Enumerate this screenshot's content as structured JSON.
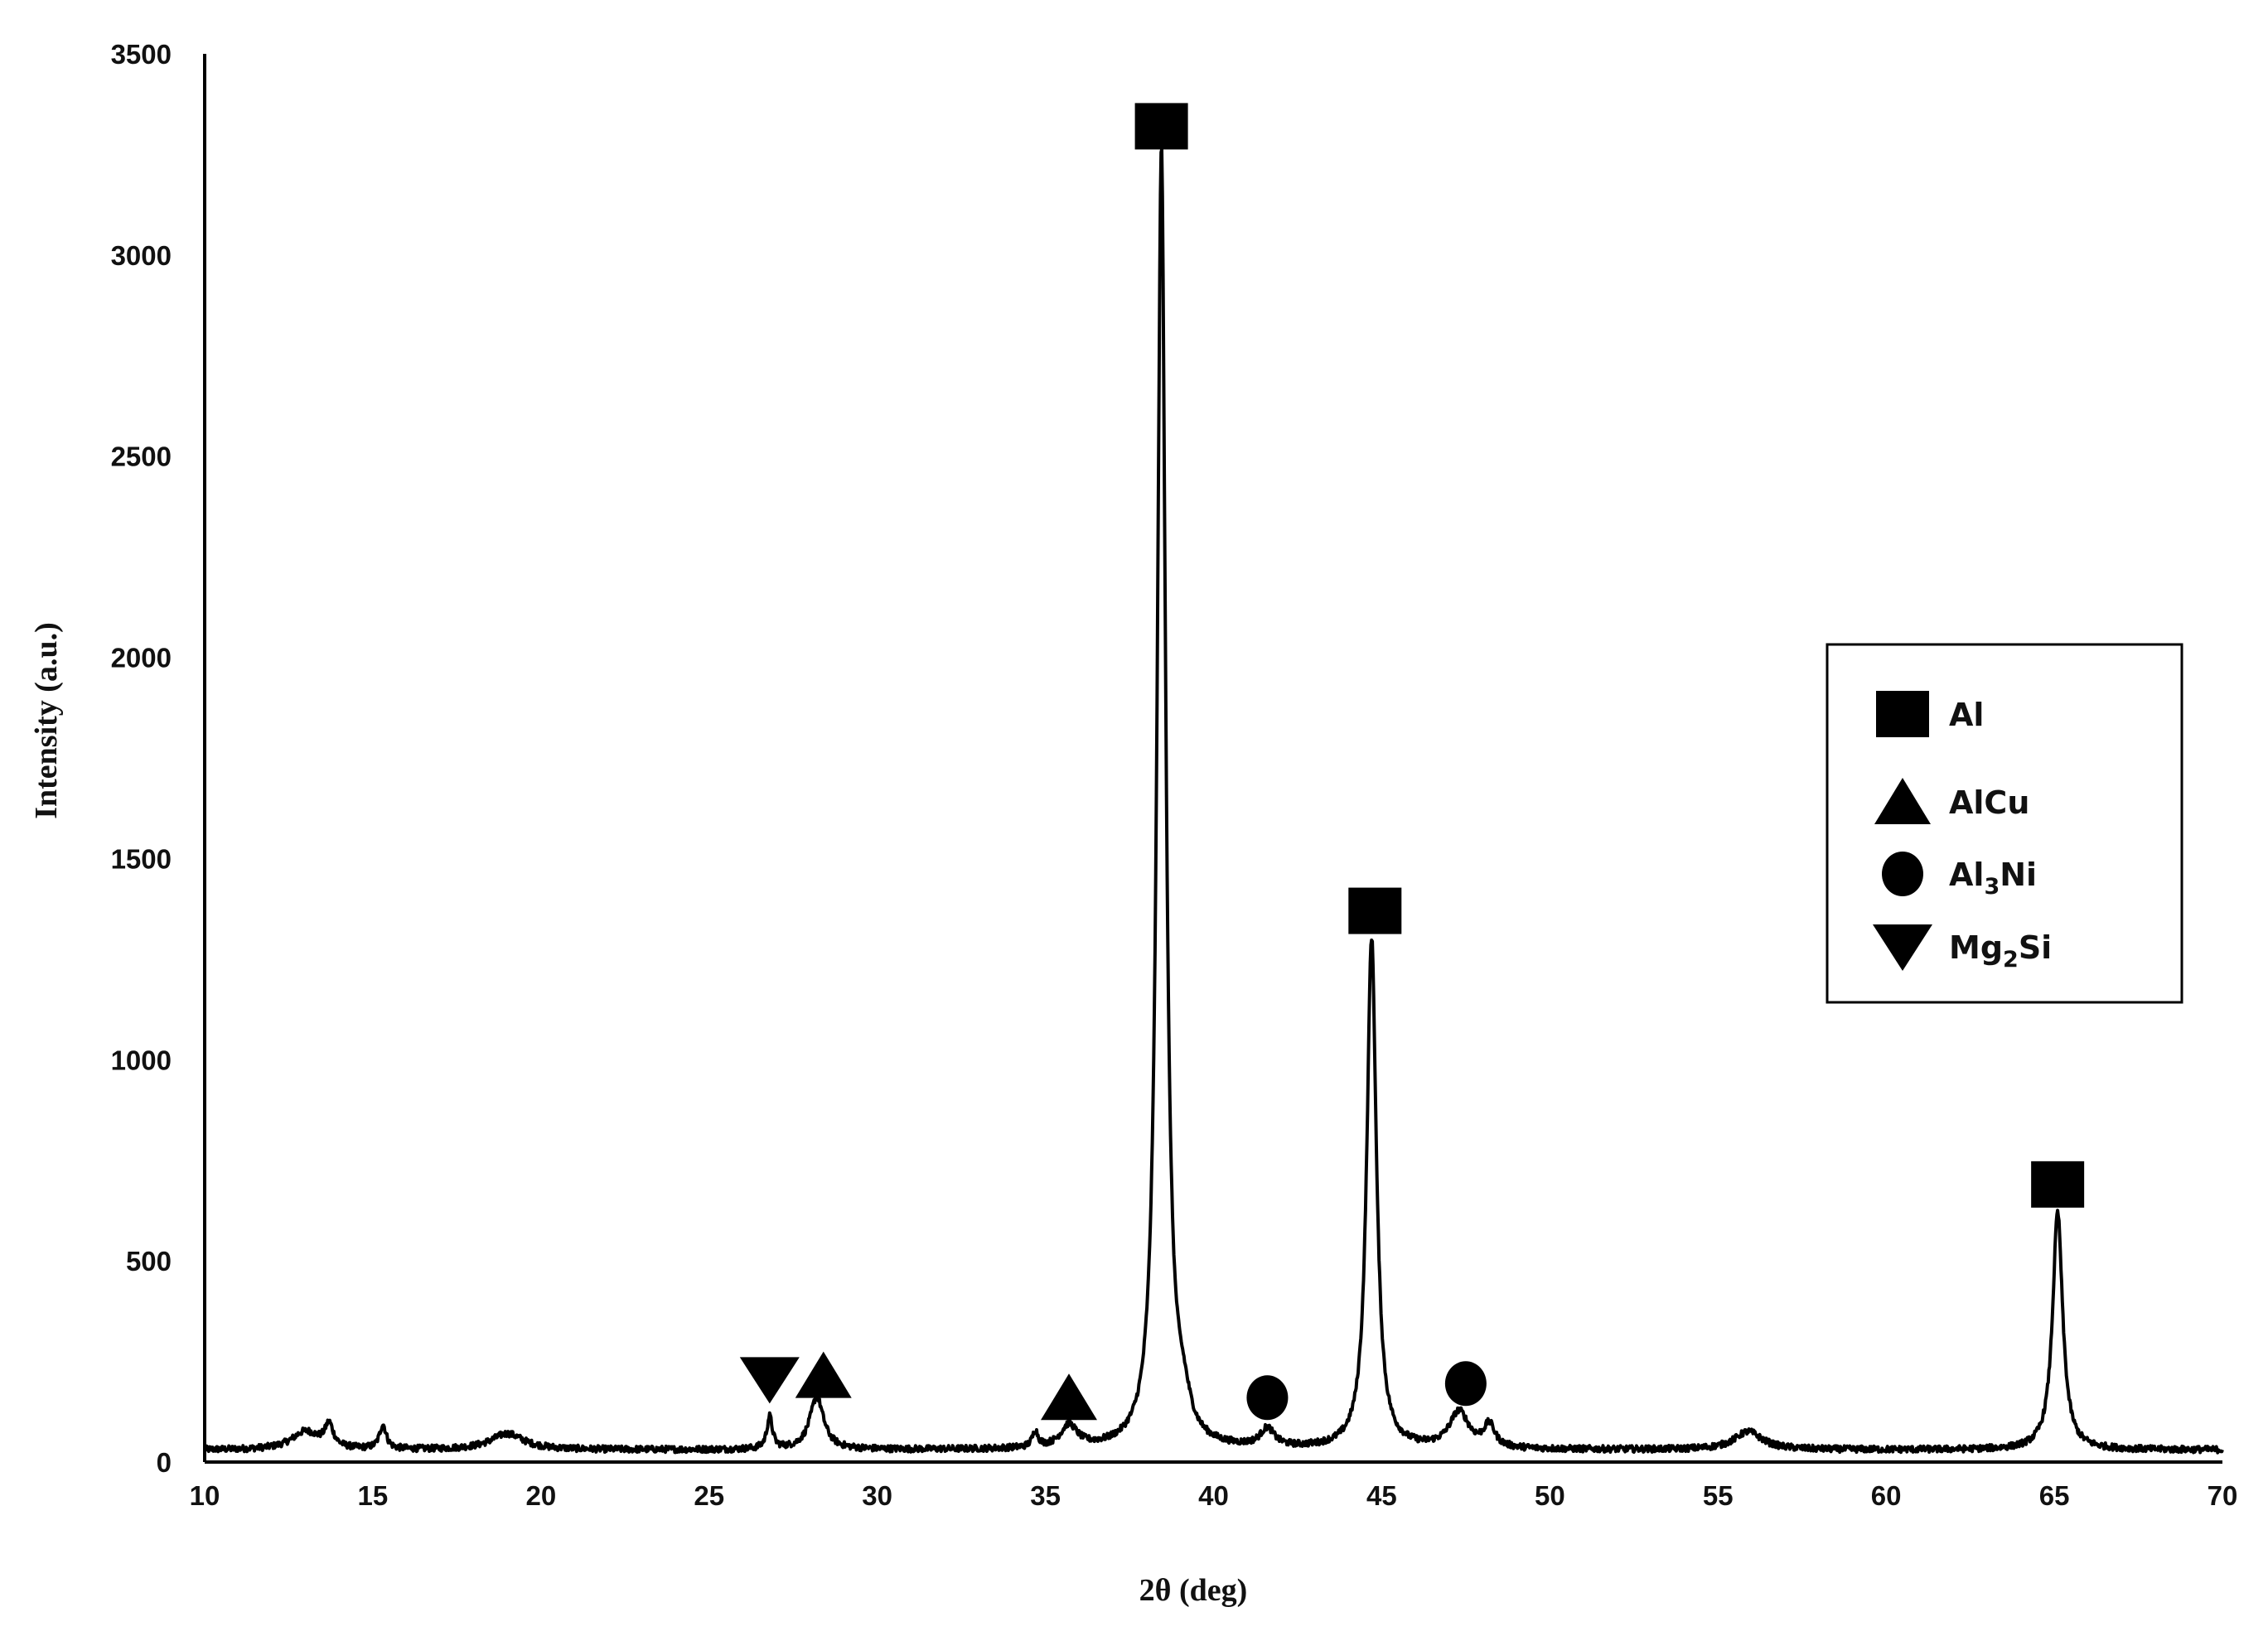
{
  "chart_data": {
    "type": "line",
    "title": "",
    "xlabel": "2θ (deg)",
    "ylabel": "Intensity (a.u.)",
    "xlim": [
      10,
      70
    ],
    "ylim": [
      0,
      3500
    ],
    "xticks": [
      10,
      15,
      20,
      25,
      30,
      35,
      40,
      45,
      50,
      55,
      60,
      65,
      70
    ],
    "yticks": [
      0,
      500,
      1000,
      1500,
      2000,
      2500,
      3000,
      3500
    ],
    "grid": false,
    "legend_position": "right",
    "line_color": "#000000",
    "baseline": 30,
    "peaks": [
      {
        "x": 13.0,
        "y": 45,
        "width": 0.5
      },
      {
        "x": 13.7,
        "y": 55,
        "width": 0.15
      },
      {
        "x": 15.3,
        "y": 60,
        "width": 0.12
      },
      {
        "x": 19.0,
        "y": 40,
        "width": 0.6
      },
      {
        "x": 26.8,
        "y": 80,
        "width": 0.1
      },
      {
        "x": 28.2,
        "y": 130,
        "width": 0.25
      },
      {
        "x": 34.7,
        "y": 40,
        "width": 0.1
      },
      {
        "x": 35.7,
        "y": 55,
        "width": 0.3
      },
      {
        "x": 38.45,
        "y": 3230,
        "width": 0.15
      },
      {
        "x": 39.1,
        "y": 75,
        "width": 0.25
      },
      {
        "x": 41.6,
        "y": 45,
        "width": 0.25
      },
      {
        "x": 44.7,
        "y": 1270,
        "width": 0.17
      },
      {
        "x": 47.3,
        "y": 90,
        "width": 0.35
      },
      {
        "x": 48.2,
        "y": 55,
        "width": 0.2
      },
      {
        "x": 55.9,
        "y": 45,
        "width": 0.5
      },
      {
        "x": 65.1,
        "y": 590,
        "width": 0.18
      }
    ],
    "markers": [
      {
        "phase": "Al",
        "shape": "square",
        "x": 38.45,
        "y": 3320
      },
      {
        "phase": "Al",
        "shape": "square",
        "x": 44.8,
        "y": 1370
      },
      {
        "phase": "Al",
        "shape": "square",
        "x": 65.1,
        "y": 690
      },
      {
        "phase": "AlCu",
        "shape": "triangle-up",
        "x": 28.4,
        "y": 215
      },
      {
        "phase": "AlCu",
        "shape": "triangle-up",
        "x": 35.7,
        "y": 160
      },
      {
        "phase": "Al3Ni",
        "shape": "circle",
        "x": 41.6,
        "y": 160
      },
      {
        "phase": "Al3Ni",
        "shape": "circle",
        "x": 47.5,
        "y": 195
      },
      {
        "phase": "Mg2Si",
        "shape": "triangle-down",
        "x": 26.8,
        "y": 205
      }
    ],
    "legend": [
      {
        "shape": "square",
        "label": "Al",
        "main": "Al",
        "sub": "",
        "tail": ""
      },
      {
        "shape": "triangle-up",
        "label": "AlCu",
        "main": "AlCu",
        "sub": "",
        "tail": ""
      },
      {
        "shape": "circle",
        "label": "Al3Ni",
        "main": "Al",
        "sub": "3",
        "tail": "Ni"
      },
      {
        "shape": "triangle-down",
        "label": "Mg2Si",
        "main": "Mg",
        "sub": "2",
        "tail": "Si"
      }
    ]
  }
}
